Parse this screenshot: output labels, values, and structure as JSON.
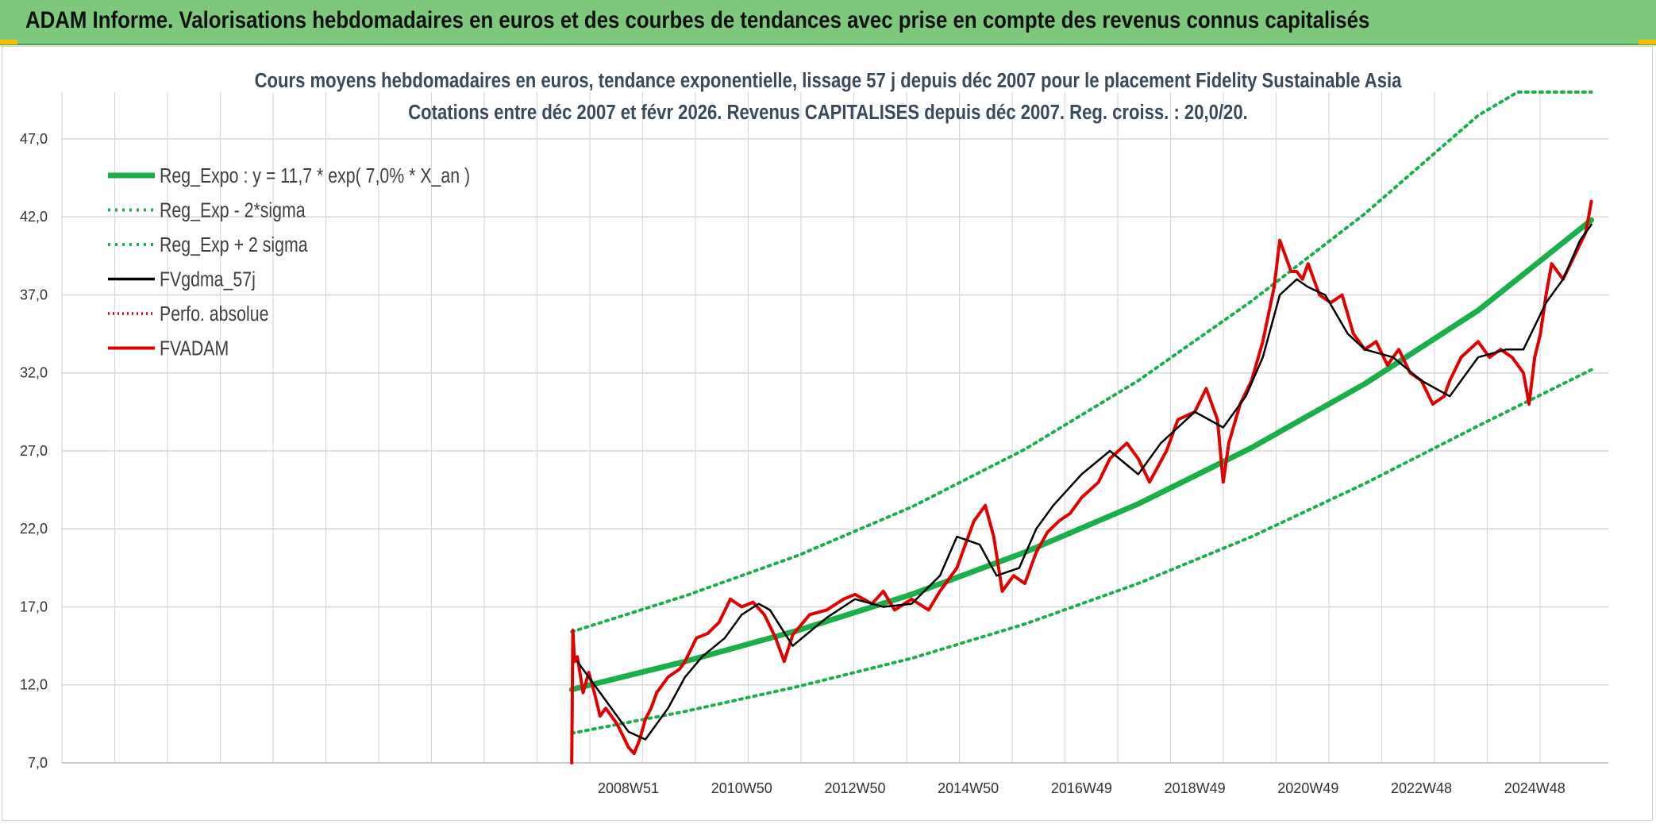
{
  "header": {
    "title": "ADAM Informe. Valorisations hebdomadaires en euros et des courbes de tendances avec prise en compte des revenus connus capitalisés"
  },
  "colors": {
    "header_bg": "#7dc87d",
    "regression": "#1aaf4b",
    "sigma_band": "#1aaf4b",
    "smoothed": "#000000",
    "perfo": "#e00000",
    "price": "#e00000",
    "grid": "#d9d9d9"
  },
  "chart_data": {
    "type": "line",
    "title_lines": [
      "Cours moyens hebdomadaires en euros, tendance exponentielle, lissage 57 j depuis déc 2007 pour le placement Fidelity Sustainable Asia",
      "Cotations entre déc 2007 et févr 2026. Revenus CAPITALISES depuis déc 2007. Reg. croiss. : 20,0/20."
    ],
    "xlabel": "",
    "ylabel": "",
    "grid": true,
    "legend_position": "top-left",
    "x_range": [
      1999.0,
      2026.3
    ],
    "ylim": [
      7.0,
      50.0
    ],
    "y_ticks": [
      "7,0",
      "12,0",
      "17,0",
      "22,0",
      "27,0",
      "32,0",
      "37,0",
      "42,0",
      "47,0"
    ],
    "y_tick_values": [
      7,
      12,
      17,
      22,
      27,
      32,
      37,
      42,
      47
    ],
    "x_ticks": [
      "2008W51",
      "2010W50",
      "2012W50",
      "2014W50",
      "2016W49",
      "2018W49",
      "2020W49",
      "2022W48",
      "2024W48"
    ],
    "x_tick_values": [
      2009.0,
      2011.0,
      2013.0,
      2015.0,
      2017.0,
      2019.0,
      2021.0,
      2023.0,
      2025.0
    ],
    "legend": [
      "Reg_Expo : y = 11,7 * exp( 7,0% *  X_an )",
      "Reg_Exp - 2*sigma",
      "Reg_Exp + 2 sigma",
      "FVgdma_57j",
      "Perfo. absolue",
      "FVADAM"
    ],
    "series": [
      {
        "name": "Reg_Expo : y = 11,7 * exp( 7,0% *  X_an )",
        "x": [
          2008.0,
          2010.0,
          2012.0,
          2014.0,
          2016.0,
          2018.0,
          2020.0,
          2022.0,
          2024.0,
          2026.0
        ],
        "values": [
          11.7,
          13.5,
          15.5,
          17.8,
          20.5,
          23.6,
          27.2,
          31.3,
          36.0,
          41.8
        ]
      },
      {
        "name": "Reg_Exp - 2*sigma",
        "x": [
          2008.0,
          2010.0,
          2012.0,
          2014.0,
          2016.0,
          2018.0,
          2020.0,
          2022.0,
          2024.0,
          2026.0
        ],
        "values": [
          8.9,
          10.3,
          11.9,
          13.7,
          15.9,
          18.5,
          21.5,
          24.9,
          28.6,
          32.2
        ]
      },
      {
        "name": "Reg_Exp + 2 sigma",
        "x": [
          2008.0,
          2010.0,
          2012.0,
          2014.0,
          2016.0,
          2018.0,
          2020.0,
          2022.0,
          2024.0,
          2024.7,
          2026.0
        ],
        "values": [
          15.4,
          17.7,
          20.3,
          23.4,
          27.1,
          31.5,
          36.6,
          42.2,
          48.5,
          50.0,
          50.0
        ]
      },
      {
        "name": "FVgdma_57j",
        "x": [
          2008.1,
          2008.5,
          2009.0,
          2009.3,
          2009.7,
          2010.0,
          2010.3,
          2010.7,
          2011.0,
          2011.3,
          2011.5,
          2011.9,
          2012.5,
          2013.0,
          2013.5,
          2014.0,
          2014.5,
          2014.8,
          2015.2,
          2015.5,
          2015.9,
          2016.2,
          2016.5,
          2017.0,
          2017.5,
          2018.0,
          2018.4,
          2018.7,
          2019.0,
          2019.5,
          2019.9,
          2020.2,
          2020.5,
          2020.8,
          2021.0,
          2021.3,
          2021.7,
          2022.0,
          2022.5,
          2023.0,
          2023.5,
          2024.0,
          2024.5,
          2024.8,
          2025.2,
          2025.5,
          2025.8,
          2026.0
        ],
        "values": [
          13.5,
          11.5,
          9.0,
          8.5,
          10.5,
          12.5,
          13.8,
          15.0,
          16.5,
          17.2,
          16.8,
          14.5,
          16.3,
          17.5,
          17.0,
          17.2,
          19.0,
          21.5,
          21.0,
          19.0,
          19.5,
          22.0,
          23.5,
          25.5,
          27.0,
          25.5,
          27.5,
          28.5,
          29.5,
          28.5,
          30.5,
          33.0,
          37.0,
          38.0,
          37.5,
          37.0,
          34.5,
          33.5,
          33.0,
          31.5,
          30.5,
          33.0,
          33.5,
          33.5,
          36.5,
          38.0,
          40.5,
          41.5
        ]
      },
      {
        "name": "FVADAM",
        "x": [
          2008.0,
          2008.02,
          2008.05,
          2008.1,
          2008.2,
          2008.3,
          2008.4,
          2008.5,
          2008.6,
          2008.8,
          2009.0,
          2009.1,
          2009.2,
          2009.3,
          2009.4,
          2009.5,
          2009.7,
          2009.9,
          2010.0,
          2010.2,
          2010.4,
          2010.6,
          2010.8,
          2011.0,
          2011.2,
          2011.4,
          2011.6,
          2011.75,
          2011.9,
          2012.2,
          2012.5,
          2012.8,
          2013.0,
          2013.3,
          2013.5,
          2013.7,
          2014.0,
          2014.3,
          2014.5,
          2014.8,
          2014.9,
          2015.1,
          2015.3,
          2015.45,
          2015.6,
          2015.8,
          2016.0,
          2016.2,
          2016.4,
          2016.6,
          2016.8,
          2017.0,
          2017.3,
          2017.5,
          2017.8,
          2018.0,
          2018.2,
          2018.5,
          2018.7,
          2019.0,
          2019.2,
          2019.4,
          2019.5,
          2019.6,
          2019.8,
          2020.0,
          2020.2,
          2020.4,
          2020.5,
          2020.7,
          2020.8,
          2020.9,
          2021.0,
          2021.2,
          2021.4,
          2021.6,
          2021.8,
          2022.0,
          2022.2,
          2022.4,
          2022.6,
          2022.8,
          2023.0,
          2023.2,
          2023.4,
          2023.5,
          2023.7,
          2024.0,
          2024.2,
          2024.4,
          2024.6,
          2024.8,
          2024.9,
          2025.0,
          2025.1,
          2025.2,
          2025.3,
          2025.5,
          2025.7,
          2025.9,
          2026.0
        ],
        "values": [
          7.0,
          15.5,
          13.5,
          13.8,
          11.5,
          12.8,
          11.5,
          10.0,
          10.5,
          9.5,
          8.0,
          7.6,
          8.5,
          9.8,
          10.5,
          11.5,
          12.5,
          13.0,
          13.5,
          15.0,
          15.3,
          16.0,
          17.5,
          17.0,
          17.3,
          16.5,
          15.0,
          13.5,
          15.2,
          16.5,
          16.8,
          17.5,
          17.8,
          17.2,
          18.0,
          16.8,
          17.5,
          16.8,
          18.0,
          19.5,
          20.5,
          22.5,
          23.5,
          21.5,
          18.0,
          19.0,
          18.5,
          20.5,
          21.8,
          22.5,
          23.0,
          24.0,
          25.0,
          26.5,
          27.5,
          26.5,
          25.0,
          27.0,
          29.0,
          29.5,
          31.0,
          29.0,
          25.0,
          27.5,
          30.0,
          31.5,
          34.0,
          37.5,
          40.5,
          38.5,
          38.5,
          38.0,
          39.0,
          37.0,
          36.5,
          37.0,
          34.5,
          33.5,
          34.0,
          32.5,
          33.5,
          32.0,
          31.5,
          30.0,
          30.5,
          31.5,
          33.0,
          34.0,
          33.0,
          33.5,
          33.0,
          32.0,
          30.0,
          33.0,
          34.5,
          37.0,
          39.0,
          38.0,
          39.5,
          41.0,
          43.0
        ]
      }
    ]
  }
}
